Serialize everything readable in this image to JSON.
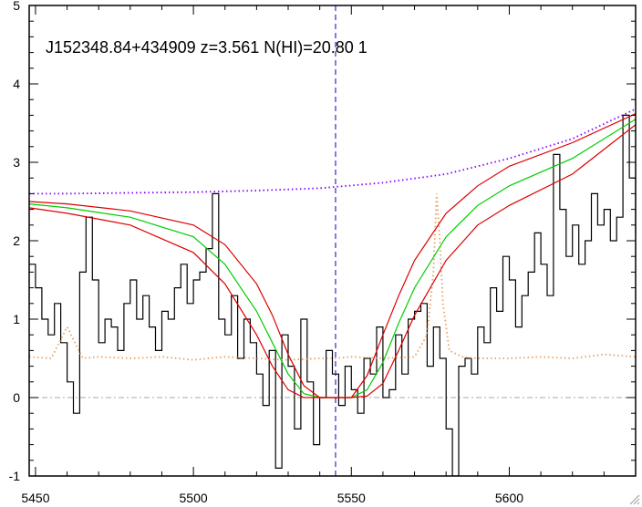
{
  "chart_data": {
    "type": "line",
    "title": "J152348.84+434909 z=3.561 N(HI)=20.80 1",
    "xlabel": "",
    "ylabel": "",
    "xlim": [
      5448,
      5640
    ],
    "ylim": [
      -1,
      5
    ],
    "x_ticks": [
      5450,
      5500,
      5550,
      5600
    ],
    "y_ticks": [
      -1,
      0,
      1,
      2,
      3,
      4,
      5
    ],
    "line_center": 5545,
    "zero_level": 0,
    "grid": false,
    "colors": {
      "flux": "#000000",
      "fit": "#00cc00",
      "fit_bounds": "#dd0000",
      "continuum": "#8800ff",
      "error": "#e8a060",
      "marker": "#0000cc",
      "zero": "#aaaaaa"
    },
    "series": [
      {
        "style": "step",
        "color": "#000000",
        "x": [
          5448,
          5450,
          5452,
          5454,
          5456,
          5458,
          5460,
          5462,
          5464,
          5466,
          5468,
          5470,
          5472,
          5474,
          5476,
          5478,
          5480,
          5482,
          5484,
          5486,
          5488,
          5490,
          5492,
          5494,
          5496,
          5498,
          5500,
          5502,
          5504,
          5506,
          5508,
          5510,
          5512,
          5514,
          5516,
          5518,
          5520,
          5522,
          5524,
          5526,
          5528,
          5530,
          5532,
          5534,
          5536,
          5538,
          5540,
          5542,
          5544,
          5546,
          5548,
          5550,
          5552,
          5554,
          5556,
          5558,
          5560,
          5562,
          5564,
          5566,
          5568,
          5570,
          5572,
          5574,
          5576,
          5578,
          5580,
          5582,
          5584,
          5586,
          5588,
          5590,
          5592,
          5594,
          5596,
          5598,
          5600,
          5602,
          5604,
          5606,
          5608,
          5610,
          5612,
          5614,
          5616,
          5618,
          5620,
          5622,
          5624,
          5626,
          5628,
          5630,
          5632,
          5634,
          5636,
          5638,
          5640
        ],
        "y": [
          1.7,
          1.4,
          1.0,
          0.8,
          1.2,
          0.7,
          0.2,
          -0.2,
          1.6,
          2.3,
          1.5,
          0.7,
          1.0,
          0.9,
          0.6,
          1.2,
          1.5,
          1.0,
          1.3,
          0.9,
          0.6,
          1.1,
          1.0,
          1.4,
          1.7,
          1.2,
          1.5,
          1.6,
          1.9,
          2.6,
          1.0,
          0.8,
          1.3,
          0.5,
          1.0,
          0.7,
          0.3,
          -0.1,
          0.6,
          -0.9,
          0.8,
          0.4,
          -0.4,
          1.0,
          0.2,
          -0.6,
          0.0,
          0.6,
          0.3,
          -0.1,
          0.4,
          0.1,
          -0.2,
          0.5,
          0.3,
          0.9,
          0.0,
          0.1,
          0.8,
          0.3,
          1.0,
          1.1,
          1.2,
          0.4,
          0.9,
          0.5,
          -0.4,
          -1.0,
          0.4,
          0.5,
          0.3,
          0.9,
          0.7,
          1.4,
          1.1,
          1.8,
          1.5,
          0.9,
          1.3,
          1.6,
          2.1,
          1.7,
          1.3,
          3.1,
          2.4,
          1.8,
          2.2,
          1.7,
          2.0,
          2.6,
          2.2,
          2.4,
          2.0,
          2.3,
          3.6,
          2.8,
          2.1
        ]
      },
      {
        "style": "dotted",
        "color": "#e8a060",
        "x": [
          5448,
          5455,
          5460,
          5465,
          5470,
          5480,
          5490,
          5500,
          5505,
          5510,
          5520,
          5530,
          5540,
          5545,
          5550,
          5560,
          5570,
          5574,
          5576,
          5577,
          5578,
          5579,
          5581,
          5585,
          5590,
          5595,
          5600,
          5610,
          5620,
          5630,
          5640
        ],
        "y": [
          0.52,
          0.5,
          0.9,
          0.5,
          0.52,
          0.5,
          0.52,
          0.48,
          0.5,
          0.52,
          0.5,
          0.48,
          0.5,
          0.5,
          0.52,
          0.5,
          0.52,
          0.8,
          1.6,
          2.6,
          2.0,
          1.2,
          0.6,
          0.52,
          0.5,
          0.5,
          0.5,
          0.52,
          0.5,
          0.55,
          0.52
        ]
      },
      {
        "style": "dotted",
        "color": "#8800ff",
        "x": [
          5448,
          5460,
          5480,
          5500,
          5520,
          5540,
          5560,
          5580,
          5600,
          5620,
          5640
        ],
        "y": [
          2.6,
          2.6,
          2.61,
          2.62,
          2.64,
          2.67,
          2.74,
          2.85,
          3.05,
          3.3,
          3.68
        ]
      },
      {
        "style": "line",
        "color": "#00cc00",
        "x": [
          5448,
          5460,
          5480,
          5500,
          5510,
          5520,
          5525,
          5530,
          5535,
          5540,
          5545,
          5550,
          5555,
          5560,
          5565,
          5570,
          5580,
          5590,
          5600,
          5620,
          5640
        ],
        "y": [
          2.47,
          2.42,
          2.3,
          2.05,
          1.7,
          1.1,
          0.7,
          0.3,
          0.05,
          0.0,
          0.0,
          0.0,
          0.1,
          0.45,
          0.95,
          1.4,
          2.05,
          2.45,
          2.7,
          3.05,
          3.55
        ]
      },
      {
        "style": "line",
        "color": "#dd0000",
        "x": [
          5448,
          5460,
          5480,
          5500,
          5510,
          5520,
          5525,
          5530,
          5535,
          5540,
          5545,
          5550,
          5555,
          5560,
          5565,
          5570,
          5580,
          5590,
          5600,
          5620,
          5640
        ],
        "y": [
          2.5,
          2.47,
          2.38,
          2.2,
          1.95,
          1.45,
          1.05,
          0.55,
          0.15,
          0.0,
          0.0,
          0.0,
          0.28,
          0.8,
          1.3,
          1.75,
          2.35,
          2.7,
          2.95,
          3.25,
          3.62
        ]
      },
      {
        "style": "line",
        "color": "#dd0000",
        "x": [
          5448,
          5460,
          5480,
          5500,
          5510,
          5520,
          5525,
          5530,
          5535,
          5540,
          5545,
          5550,
          5555,
          5560,
          5565,
          5570,
          5580,
          5590,
          5600,
          5620,
          5640
        ],
        "y": [
          2.42,
          2.35,
          2.2,
          1.85,
          1.45,
          0.8,
          0.4,
          0.1,
          0.0,
          0.0,
          0.0,
          0.0,
          0.02,
          0.18,
          0.6,
          1.05,
          1.75,
          2.2,
          2.45,
          2.85,
          3.48
        ]
      }
    ]
  }
}
